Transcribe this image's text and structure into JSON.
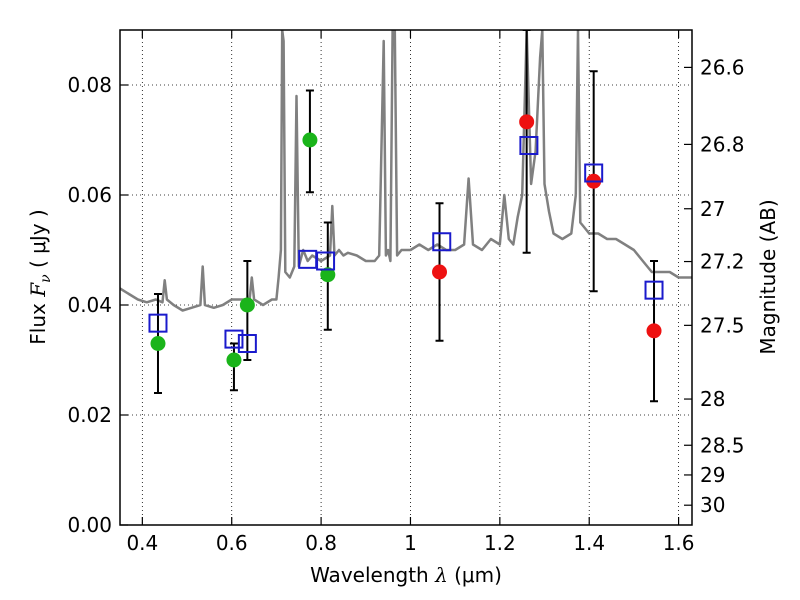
{
  "chart_data": {
    "type": "scatter",
    "xlabel": "Wavelength",
    "xlabel_symbol": "λ",
    "xlabel_unit": "(μm)",
    "ylabel": "Flux",
    "ylabel_symbol": "F",
    "ylabel_symbol_sub": "ν",
    "ylabel_unit": "( μJy )",
    "y2label": "Magnitude (AB)",
    "xlim": [
      0.35,
      1.63
    ],
    "ylim": [
      0.0,
      0.09
    ],
    "grid": true,
    "x_ticks": [
      0.4,
      0.6,
      0.8,
      1.0,
      1.2,
      1.4,
      1.6
    ],
    "x_tick_labels": [
      "0.4",
      "0.6",
      "0.8",
      "1",
      "1.2",
      "1.4",
      "1.6"
    ],
    "y_ticks": [
      0.0,
      0.02,
      0.04,
      0.06,
      0.08
    ],
    "y_tick_labels": [
      "0.00",
      "0.02",
      "0.04",
      "0.06",
      "0.08"
    ],
    "magnitude_ticks": [
      {
        "label": "26.6",
        "flux": 0.0832
      },
      {
        "label": "26.8",
        "flux": 0.0692
      },
      {
        "label": "27",
        "flux": 0.0575
      },
      {
        "label": "27.2",
        "flux": 0.0479
      },
      {
        "label": "27.5",
        "flux": 0.0363
      },
      {
        "label": "28",
        "flux": 0.0229
      },
      {
        "label": "28.5",
        "flux": 0.0145
      },
      {
        "label": "29",
        "flux": 0.0091
      },
      {
        "label": "30",
        "flux": 0.0036
      }
    ],
    "series": [
      {
        "kind": "line",
        "color": "#808080",
        "points": [
          [
            0.35,
            0.043
          ],
          [
            0.37,
            0.042
          ],
          [
            0.39,
            0.041
          ],
          [
            0.41,
            0.0405
          ],
          [
            0.43,
            0.041
          ],
          [
            0.445,
            0.0405
          ],
          [
            0.45,
            0.0445
          ],
          [
            0.455,
            0.041
          ],
          [
            0.47,
            0.04
          ],
          [
            0.49,
            0.039
          ],
          [
            0.51,
            0.0395
          ],
          [
            0.53,
            0.04
          ],
          [
            0.535,
            0.047
          ],
          [
            0.54,
            0.04
          ],
          [
            0.56,
            0.0395
          ],
          [
            0.58,
            0.04
          ],
          [
            0.6,
            0.041
          ],
          [
            0.62,
            0.041
          ],
          [
            0.64,
            0.041
          ],
          [
            0.645,
            0.045
          ],
          [
            0.65,
            0.041
          ],
          [
            0.67,
            0.04
          ],
          [
            0.69,
            0.041
          ],
          [
            0.7,
            0.041
          ],
          [
            0.705,
            0.045
          ],
          [
            0.71,
            0.05
          ],
          [
            0.713,
            0.09
          ],
          [
            0.716,
            0.088
          ],
          [
            0.72,
            0.046
          ],
          [
            0.73,
            0.045
          ],
          [
            0.74,
            0.047
          ],
          [
            0.745,
            0.078
          ],
          [
            0.75,
            0.047
          ],
          [
            0.76,
            0.05
          ],
          [
            0.77,
            0.048
          ],
          [
            0.78,
            0.049
          ],
          [
            0.8,
            0.048
          ],
          [
            0.82,
            0.049
          ],
          [
            0.825,
            0.058
          ],
          [
            0.83,
            0.049
          ],
          [
            0.84,
            0.05
          ],
          [
            0.85,
            0.049
          ],
          [
            0.86,
            0.0495
          ],
          [
            0.88,
            0.049
          ],
          [
            0.9,
            0.048
          ],
          [
            0.92,
            0.048
          ],
          [
            0.93,
            0.049
          ],
          [
            0.94,
            0.088
          ],
          [
            0.945,
            0.049
          ],
          [
            0.95,
            0.05
          ],
          [
            0.955,
            0.048
          ],
          [
            0.96,
            0.09
          ],
          [
            0.965,
            0.09
          ],
          [
            0.97,
            0.049
          ],
          [
            0.98,
            0.05
          ],
          [
            1.0,
            0.05
          ],
          [
            1.02,
            0.051
          ],
          [
            1.04,
            0.05
          ],
          [
            1.06,
            0.051
          ],
          [
            1.08,
            0.05
          ],
          [
            1.1,
            0.05
          ],
          [
            1.12,
            0.051
          ],
          [
            1.13,
            0.063
          ],
          [
            1.14,
            0.051
          ],
          [
            1.16,
            0.05
          ],
          [
            1.18,
            0.052
          ],
          [
            1.2,
            0.051
          ],
          [
            1.21,
            0.06
          ],
          [
            1.22,
            0.052
          ],
          [
            1.23,
            0.051
          ],
          [
            1.24,
            0.056
          ],
          [
            1.25,
            0.06
          ],
          [
            1.26,
            0.09
          ],
          [
            1.27,
            0.062
          ],
          [
            1.28,
            0.068
          ],
          [
            1.29,
            0.085
          ],
          [
            1.295,
            0.09
          ],
          [
            1.3,
            0.062
          ],
          [
            1.31,
            0.057
          ],
          [
            1.32,
            0.053
          ],
          [
            1.34,
            0.052
          ],
          [
            1.36,
            0.053
          ],
          [
            1.37,
            0.06
          ],
          [
            1.375,
            0.09
          ],
          [
            1.38,
            0.055
          ],
          [
            1.39,
            0.054
          ],
          [
            1.4,
            0.053
          ],
          [
            1.42,
            0.053
          ],
          [
            1.44,
            0.052
          ],
          [
            1.46,
            0.052
          ],
          [
            1.48,
            0.051
          ],
          [
            1.5,
            0.05
          ],
          [
            1.52,
            0.048
          ],
          [
            1.54,
            0.046
          ],
          [
            1.56,
            0.046
          ],
          [
            1.58,
            0.046
          ],
          [
            1.6,
            0.045
          ],
          [
            1.63,
            0.045
          ]
        ]
      },
      {
        "kind": "errorbar",
        "color": "#000000",
        "bars": [
          {
            "x": 0.435,
            "low": 0.024,
            "high": 0.042
          },
          {
            "x": 0.605,
            "low": 0.0245,
            "high": 0.033
          },
          {
            "x": 0.635,
            "low": 0.03,
            "high": 0.048
          },
          {
            "x": 0.775,
            "low": 0.0605,
            "high": 0.079
          },
          {
            "x": 0.815,
            "low": 0.0355,
            "high": 0.055
          },
          {
            "x": 1.065,
            "low": 0.0335,
            "high": 0.0585
          },
          {
            "x": 1.26,
            "low": 0.0495,
            "high": 0.09
          },
          {
            "x": 1.41,
            "low": 0.0425,
            "high": 0.0825
          },
          {
            "x": 1.545,
            "low": 0.0225,
            "high": 0.048
          }
        ]
      },
      {
        "kind": "points",
        "marker": "circle",
        "color": "#1ab41a",
        "points": [
          [
            0.435,
            0.033
          ],
          [
            0.605,
            0.03
          ],
          [
            0.635,
            0.04
          ],
          [
            0.775,
            0.07
          ],
          [
            0.815,
            0.0455
          ]
        ]
      },
      {
        "kind": "points",
        "marker": "circle",
        "color": "#ee1111",
        "points": [
          [
            1.065,
            0.046
          ],
          [
            1.26,
            0.0733
          ],
          [
            1.41,
            0.0625
          ],
          [
            1.545,
            0.0353
          ]
        ]
      },
      {
        "kind": "points",
        "marker": "square",
        "color": "#1a1acc",
        "points": [
          [
            0.435,
            0.0367
          ],
          [
            0.605,
            0.0338
          ],
          [
            0.635,
            0.033
          ],
          [
            0.77,
            0.0483
          ],
          [
            0.81,
            0.048
          ],
          [
            1.07,
            0.0515
          ],
          [
            1.265,
            0.069
          ],
          [
            1.41,
            0.064
          ],
          [
            1.545,
            0.0427
          ]
        ]
      }
    ]
  }
}
